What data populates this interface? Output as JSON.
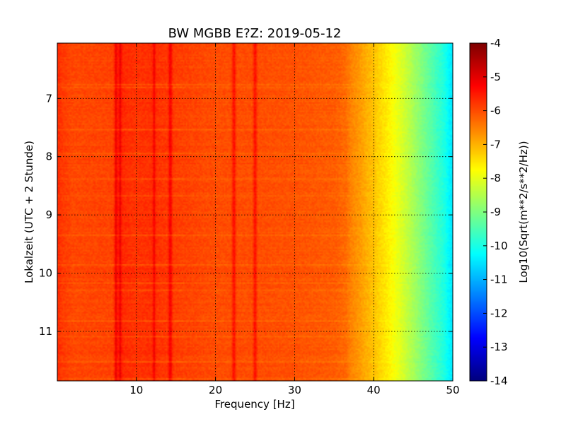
{
  "chart_data": {
    "type": "heatmap",
    "title": "BW MGBB E?Z: 2019-05-12",
    "xlabel": "Frequency [Hz]",
    "ylabel": "Lokalzeit (UTC + 2 Stunde)",
    "colorbar_label": "Log10(Sqrt(m**2/s**2/Hz))",
    "xlim": [
      0,
      50
    ],
    "ylim": [
      11.85,
      6.05
    ],
    "x_ticks": [
      "10",
      "20",
      "30",
      "40",
      "50"
    ],
    "x_tick_values": [
      10,
      20,
      30,
      40,
      50
    ],
    "y_ticks": [
      "7",
      "8",
      "9",
      "10",
      "11"
    ],
    "y_tick_values": [
      7,
      8,
      9,
      10,
      11
    ],
    "colorbar_ticks": [
      "-4",
      "-5",
      "-6",
      "-7",
      "-8",
      "-9",
      "-10",
      "-11",
      "-12",
      "-13",
      "-14"
    ],
    "colorbar_values": [
      -4,
      -5,
      -6,
      -7,
      -8,
      -9,
      -10,
      -11,
      -12,
      -13,
      -14
    ],
    "vmin": -14,
    "vmax": -4,
    "colormap": "jet",
    "grid": true,
    "frequency_profile": {
      "frequency_hz": [
        0,
        0.5,
        2,
        7,
        7.5,
        10,
        12,
        15,
        20,
        25,
        30,
        35,
        36.5,
        37,
        38,
        39,
        40,
        41,
        42,
        43,
        44,
        45,
        46,
        47,
        48,
        49,
        49.5,
        50
      ],
      "level": [
        -5.6,
        -5.8,
        -5.95,
        -5.9,
        -5.6,
        -5.75,
        -5.7,
        -5.85,
        -6.0,
        -6.0,
        -6.05,
        -6.15,
        -6.3,
        -6.5,
        -6.7,
        -6.95,
        -7.15,
        -7.4,
        -7.65,
        -7.95,
        -8.25,
        -8.6,
        -8.95,
        -9.3,
        -9.65,
        -10.0,
        -10.3,
        -10.5
      ]
    },
    "narrow_lines_hz": [
      7.4,
      7.9,
      12.2,
      14.3,
      22.3,
      25.0
    ]
  }
}
